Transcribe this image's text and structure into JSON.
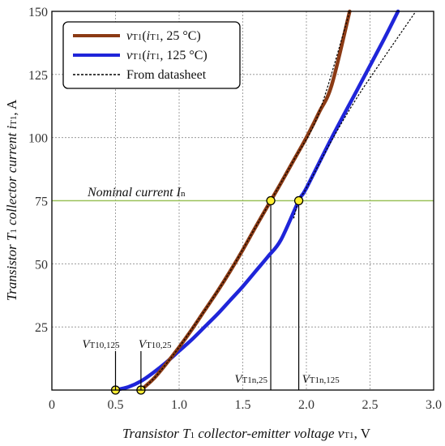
{
  "chart_data": {
    "type": "line",
    "xlabel": "Transistor T₁ collector-emitter voltage vᵀ¹, V",
    "ylabel": "Transistor T₁ collector current iᵀ¹, A",
    "xlabel_parts": {
      "pre": "Transistor ",
      "T": "T",
      "T_sub": "1",
      "mid": " collector-emitter voltage ",
      "v": "v",
      "v_sub": "T1",
      "post": ", V"
    },
    "ylabel_parts": {
      "pre": "Transistor ",
      "T": "T",
      "T_sub": "1",
      "mid": " collector current ",
      "i": "i",
      "i_sub": "T1",
      "post": ", A"
    },
    "xlim": [
      0,
      3.0
    ],
    "ylim": [
      0,
      150
    ],
    "x_ticks": [
      "0",
      "0.5",
      "1.0",
      "1.5",
      "2.0",
      "2.5",
      "3.0"
    ],
    "y_ticks": [
      "25",
      "50",
      "75",
      "100",
      "125",
      "150"
    ],
    "x_tick_values": [
      0,
      0.5,
      1.0,
      1.5,
      2.0,
      2.5,
      3.0
    ],
    "y_tick_values": [
      25,
      50,
      75,
      100,
      125,
      150
    ],
    "grid": true,
    "legend_position": "top-left",
    "series": [
      {
        "name": "vT1(iT1, 25 °C)",
        "label_parts": {
          "v": "v",
          "v_sub": "T1",
          "open": "(",
          "i": "i",
          "i_sub": "T1",
          "rest": ", 25 °C)"
        },
        "color": "#8b3a14",
        "x": [
          0.7,
          0.8,
          0.9,
          1.0,
          1.1,
          1.2,
          1.3,
          1.4,
          1.5,
          1.6,
          1.72,
          1.8,
          1.9,
          2.0,
          2.1,
          2.2,
          2.34
        ],
        "y": [
          0,
          4.5,
          10.5,
          17,
          24,
          31.5,
          39,
          47,
          55.5,
          64.5,
          75,
          82,
          91,
          100,
          110,
          121,
          150
        ]
      },
      {
        "name": "vT1(iT1, 125 °C)",
        "label_parts": {
          "v": "v",
          "v_sub": "T1",
          "open": "(",
          "i": "i",
          "i_sub": "T1",
          "rest": ", 125 °C)"
        },
        "color": "#1f25d9",
        "x": [
          0.5,
          0.6,
          0.7,
          0.8,
          0.9,
          1.0,
          1.1,
          1.2,
          1.3,
          1.4,
          1.5,
          1.6,
          1.7,
          1.8,
          1.94,
          2.0,
          2.2,
          2.4,
          2.6,
          2.72
        ],
        "y": [
          0,
          1.2,
          3.5,
          7,
          11,
          15.5,
          20,
          25,
          30,
          35.5,
          41,
          47,
          53,
          59.5,
          75,
          80,
          100,
          119,
          138,
          150
        ]
      },
      {
        "name": "From datasheet",
        "color": "#000000",
        "dashed": true,
        "x": [
          0.7,
          0.8,
          0.9,
          1.0,
          1.2,
          1.4,
          1.6,
          1.72,
          1.9,
          2.1,
          2.34,
          1.9,
          1.94,
          2.0,
          2.2,
          2.4,
          2.6,
          2.86
        ],
        "y": [
          0,
          4.5,
          10.5,
          17,
          31.5,
          47,
          64.5,
          75,
          91,
          110,
          150,
          68,
          75,
          80,
          99,
          116,
          131,
          150
        ],
        "segments": [
          [
            0,
            11
          ],
          [
            11,
            18
          ]
        ]
      }
    ],
    "reference_line": {
      "y": 75,
      "color": "#9ac15a",
      "label_pre": "Nominal current ",
      "label_I": "I",
      "label_sub": "n"
    },
    "markers": [
      {
        "x": 0.5,
        "y": 0,
        "label": "VT10,125",
        "label_V": "V",
        "label_sub": "T10,125",
        "label_side": "left"
      },
      {
        "x": 0.7,
        "y": 0,
        "label": "VT10,25",
        "label_V": "V",
        "label_sub": "T10,25",
        "label_side": "right"
      },
      {
        "x": 1.72,
        "y": 75,
        "label": "VT1n,25",
        "label_V": "V",
        "label_sub": "T1n,25",
        "label_side": "left"
      },
      {
        "x": 1.94,
        "y": 75,
        "label": "VT1n,125",
        "label_V": "V",
        "label_sub": "T1n,125",
        "label_side": "right"
      }
    ],
    "marker_color": "#ffee33"
  }
}
